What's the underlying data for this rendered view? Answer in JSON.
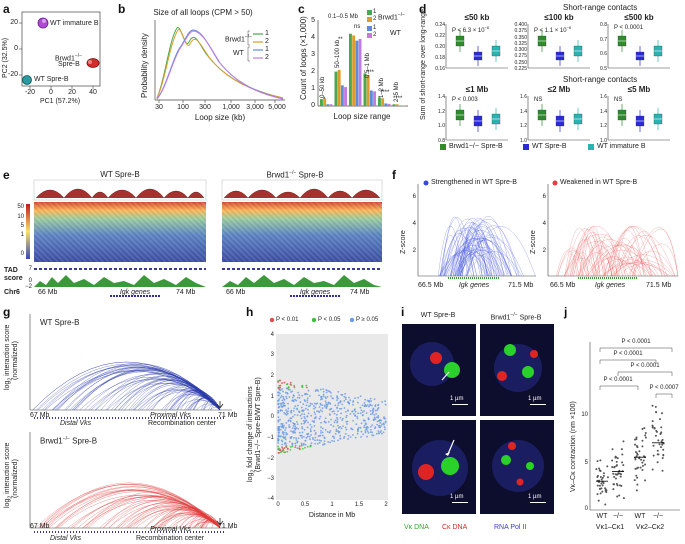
{
  "labels": {
    "a": "a",
    "b": "b",
    "c": "c",
    "d": "d",
    "e": "e",
    "f": "f",
    "g": "g",
    "h": "h",
    "i": "i",
    "j": "j"
  },
  "panel_a": {
    "ylabel": "PC2 (32.5%)",
    "xlabel": "PC1 (57.2%)",
    "yticks": [
      "20",
      "0",
      "-20"
    ],
    "xticks": [
      "-20",
      "0",
      "20",
      "40"
    ],
    "group_wt_immature": "WT immature B",
    "group_brwd1_a": "Brwd1",
    "group_brwd1_sup": "−/−",
    "group_brwd1_b": "Spre-B",
    "group_wt_spreb": "WT Spre-B",
    "colors": {
      "wt_immature": "#b04ad6",
      "brwd1": "#d22b2b",
      "wt_spreb": "#2a9aa0"
    }
  },
  "panel_b": {
    "title": "Size of all loops (CPM > 50)",
    "ylabel": "Probability density",
    "xlabel": "Loop size (kb)",
    "xticks": [
      "30",
      "100",
      "300",
      "1,000",
      "3,000",
      "5,000"
    ],
    "legend_brwd1": "Brwd1",
    "legend_brwd1_sup": "−/−",
    "legend_wt": "WT",
    "legend_items": [
      "1",
      "2",
      "1",
      "2"
    ],
    "colors": [
      "#4aa84a",
      "#e09a2b",
      "#5b8bd9",
      "#c27be0"
    ]
  },
  "panel_c": {
    "ylabel": "Count of loops (×1,000)",
    "xlabel": "Loop size range",
    "yticks": [
      "0",
      "1",
      "2",
      "3",
      "4",
      "5"
    ],
    "top_label": "0.1–0.5 Mb",
    "range_labels": [
      "0–50 kb",
      "50–100 kb",
      "0.5–1 Mb",
      "1–2 Mb",
      "2–5 Mb"
    ],
    "sig": [
      "*",
      "**",
      "ns",
      "***",
      "****",
      "****"
    ],
    "legend_brwd1": "Brwd1",
    "legend_brwd1_sup": "−/−",
    "legend_wt": "WT",
    "legend_items": [
      "1",
      "2",
      "1",
      "2"
    ]
  },
  "chart_data": {
    "type": "bar",
    "xlabel": "Loop size range",
    "ylabel": "Count of loops (×1,000)",
    "ylim": [
      0,
      5
    ],
    "categories": [
      "0–50 kb",
      "50–100 kb",
      "0.1–0.5 Mb",
      "0.5–1 Mb",
      "1–2 Mb",
      "2–5 Mb"
    ],
    "series": [
      {
        "name": "Brwd1−/− 1",
        "values": [
          0.4,
          2.0,
          4.2,
          1.9,
          0.5,
          0.1
        ]
      },
      {
        "name": "Brwd1−/− 2",
        "values": [
          0.45,
          2.1,
          4.1,
          1.8,
          0.45,
          0.1
        ]
      },
      {
        "name": "WT 1",
        "values": [
          0.1,
          1.2,
          3.8,
          0.9,
          0.15,
          0.03
        ]
      },
      {
        "name": "WT 2",
        "values": [
          0.1,
          1.1,
          3.9,
          0.85,
          0.12,
          0.03
        ]
      }
    ]
  },
  "panel_d": {
    "header_top": "Short-range contacts",
    "header_mid": "Short-range contacts",
    "ylabel": "Sum of short-range over long-range",
    "subplots": [
      {
        "title": "≤50 kb",
        "p": "P < 6.3 × 10",
        "p_sup": "−6",
        "ns": "",
        "yticks": [
          "0.24",
          "0.22",
          "0.20",
          "0.18",
          "0.16"
        ]
      },
      {
        "title": "≤100 kb",
        "p": "P < 1.1 × 10",
        "p_sup": "−6",
        "ns": "",
        "yticks": [
          "0.400",
          "0.375",
          "0.350",
          "0.325",
          "0.300",
          "0.275",
          "0.250",
          "0.225"
        ]
      },
      {
        "title": "≤500 kb",
        "p": "P < 0.0001",
        "p_sup": "",
        "ns": "",
        "yticks": [
          "0.8",
          "0.7",
          "0.6",
          "0.5"
        ]
      },
      {
        "title": "≤1 Mb",
        "p": "P < 0.003",
        "p_sup": "",
        "ns": "",
        "yticks": [
          "1.4",
          "1.2",
          "1.0",
          "0.8"
        ]
      },
      {
        "title": "≤2 Mb",
        "p": "",
        "p_sup": "",
        "ns": "NS",
        "yticks": [
          "1.6",
          "1.4",
          "1.2",
          "1.0"
        ]
      },
      {
        "title": "≤5 Mb",
        "p": "",
        "p_sup": "",
        "ns": "NS",
        "yticks": [
          "1.6",
          "1.4",
          "1.2",
          "1.0"
        ]
      }
    ],
    "legend": [
      "Brwd1−/− Spre-B",
      "WT Spre-B",
      "WT immature B"
    ],
    "legend_colors": [
      "#2e8b2e",
      "#2a2ad6",
      "#2ab3b3"
    ]
  },
  "panel_e": {
    "title_wt": "WT Spre-B",
    "title_brwd1_a": "Brwd1",
    "title_brwd1_sup": "−/−",
    "title_brwd1_b": "Spre-B",
    "scale": [
      "50",
      "10",
      "5",
      "1",
      "0"
    ],
    "tad": "TAD",
    "score": "score",
    "tad_ticks": [
      "7",
      "0",
      "−2"
    ],
    "left_coords": [
      "66 Mb",
      "74 Mb"
    ],
    "right_coords": [
      "66 Mb",
      "74 Mb"
    ],
    "igk": "Igk genes",
    "chr": "Chr6"
  },
  "panel_f": {
    "legend_strong": "Strengthened in WT Spre-B",
    "legend_weak": "Weakened in WT Spre-B",
    "ylabel": "Z-score",
    "yticks": [
      "6",
      "4",
      "2"
    ],
    "coords": [
      "66.5 Mb",
      "71.5 Mb"
    ],
    "igk": "Igk genes"
  },
  "panel_g": {
    "ylabel_a": "log",
    "ylabel_sub": "2",
    "ylabel_b": " interaction score",
    "ylabel_c": "(normalized)",
    "title_wt": "WT Spre-B",
    "title_brwd1_a": "Brwd1",
    "title_brwd1_sup": "−/−",
    "title_brwd1_b": "Spre-B",
    "coords": [
      "67 Mb",
      "71 Mb"
    ],
    "distal": "Distal Vks",
    "proximal": "Proximal Vks",
    "recomb": "Recombination center"
  },
  "panel_h": {
    "legend": [
      "P < 0.01",
      "P < 0.05",
      "P ≥ 0.05"
    ],
    "legend_colors": [
      "#e04b4b",
      "#3cbf3c",
      "#6a9ae8"
    ],
    "ylabel_a": "log",
    "ylabel_sub": "2",
    "ylabel_b": " fold change of interactions",
    "ylabel_c": "(Brwd1−/− Spre-B/WT Spre-B)",
    "xlabel": "Distance in Mb",
    "xticks": [
      "0",
      "0.5",
      "1",
      "1.5",
      "2"
    ],
    "yticks": [
      "4",
      "3",
      "2",
      "1",
      "0",
      "−1",
      "−2",
      "−3",
      "−4"
    ]
  },
  "panel_i": {
    "title_wt": "WT Spre-B",
    "title_brwd1_a": "Brwd1",
    "title_brwd1_sup": "−/−",
    "title_brwd1_b": "Spre-B",
    "scale": "1 µm",
    "legend": [
      "Vκ DNA",
      "Cκ DNA",
      "RNA Pol II"
    ],
    "legend_colors": [
      "#2ea82e",
      "#d42a2a",
      "#3a3ad6"
    ]
  },
  "panel_j": {
    "ylabel": "Vκ–Cκ contraction (nm ×100)",
    "yticks": [
      "10",
      "5",
      "0"
    ],
    "pvalues": [
      "P < 0.0001",
      "P < 0.0001",
      "P < 0.0001",
      "P < 0.0001",
      "P < 0.0007"
    ],
    "xlabels": [
      "WT",
      "−/−",
      "WT",
      "−/−"
    ],
    "groups": [
      "Vκ1–Cκ1",
      "Vκ2–Cκ2"
    ]
  }
}
